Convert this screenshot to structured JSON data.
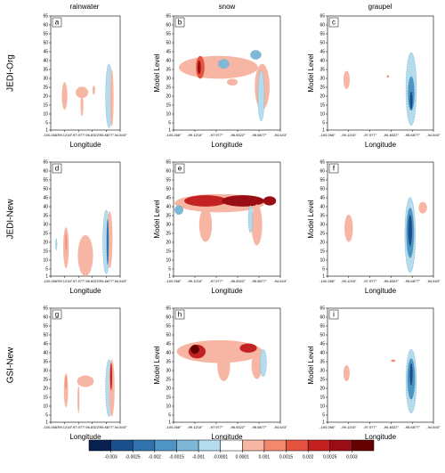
{
  "chart_data": {
    "type": "contour",
    "columns": [
      "rainwater",
      "snow",
      "graupel"
    ],
    "rows": [
      "JEDI-Org",
      "JEDI-New",
      "GSI-New"
    ],
    "panel_letters": [
      [
        "a",
        "b",
        "c"
      ],
      [
        "d",
        "e",
        "f"
      ],
      [
        "g",
        "h",
        "i"
      ]
    ],
    "x_label": "Longitude",
    "y_label": "Model Level",
    "xlim": [
      -100.266,
      -94.543
    ],
    "xticks": [
      {
        "value": -100.266,
        "label": "-100.266°"
      },
      {
        "value": -99.1216,
        "label": "-99.1216°"
      },
      {
        "value": -97.977,
        "label": "-97.977°"
      },
      {
        "value": -96.8322,
        "label": "-96.8322°"
      },
      {
        "value": -95.6877,
        "label": "-95.6877°"
      },
      {
        "value": -94.543,
        "label": "-94.543°"
      }
    ],
    "ylim": [
      1,
      65
    ],
    "yticks": [
      1,
      5,
      10,
      15,
      20,
      25,
      30,
      35,
      40,
      45,
      50,
      55,
      60,
      65
    ],
    "levels": [
      -0.003,
      -0.0025,
      -0.002,
      -0.0015,
      -0.001,
      -0.0001,
      0.0001,
      0.001,
      0.0015,
      0.002,
      0.0025,
      0.003
    ],
    "colors": [
      "#08204f",
      "#1a4f8c",
      "#2f72ad",
      "#4f95c4",
      "#7fb7d6",
      "#b5dcec",
      "#ffffff",
      "#f7b6a3",
      "#f2886d",
      "#e5543f",
      "#c42222",
      "#9a0d14",
      "#640000"
    ]
  }
}
